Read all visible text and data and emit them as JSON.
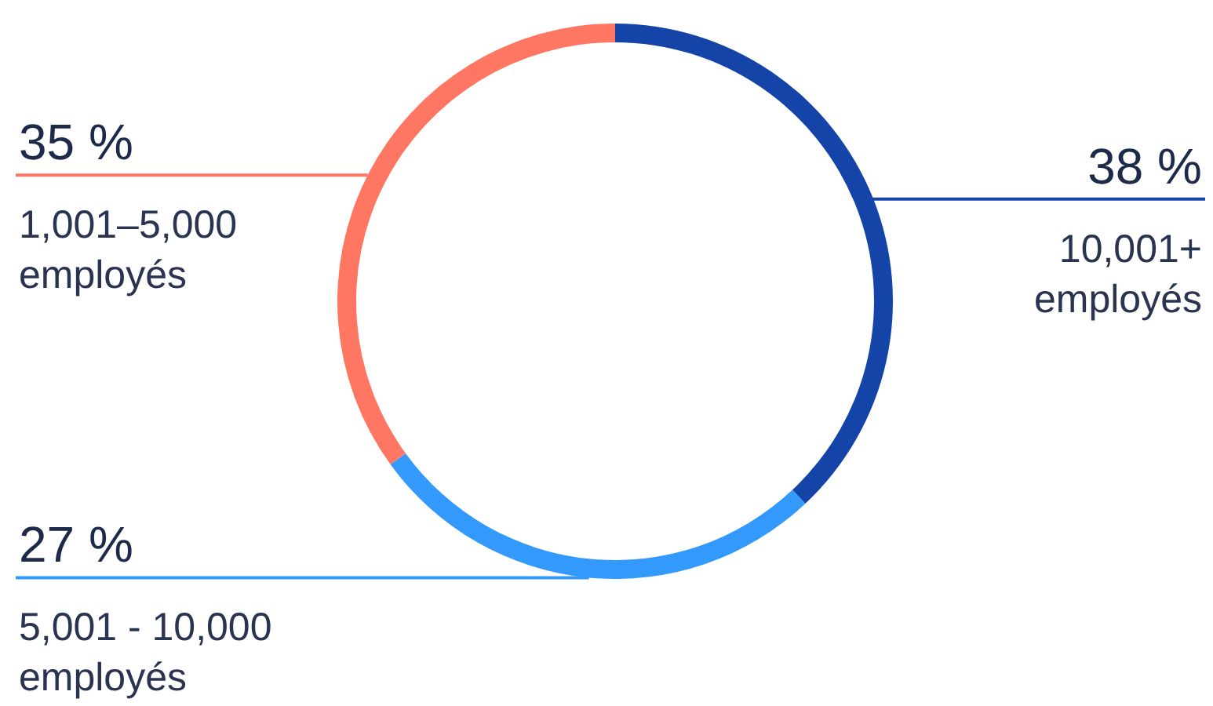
{
  "chart_data": {
    "type": "donut",
    "categories": [
      "10,001+ employés",
      "5,001 - 10,000 employés",
      "1,001–5,000 employés"
    ],
    "values": [
      38,
      27,
      35
    ],
    "colors": [
      "#1444a8",
      "#3399fa",
      "#ff7662"
    ],
    "value_labels": [
      "38 %",
      "27 %",
      "35 %"
    ]
  }
}
